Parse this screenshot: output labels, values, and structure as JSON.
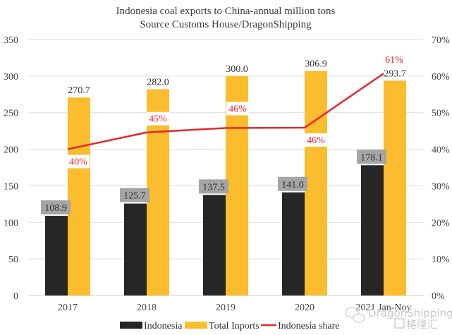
{
  "chart_data": {
    "type": "bar",
    "title": "Indonesia coal exports to China-annual million tons",
    "subtitle": "Source Customs House/DragonShipping",
    "categories": [
      "2017",
      "2018",
      "2019",
      "2020",
      "2021 Jan-Noy"
    ],
    "series": [
      {
        "name": "Indonesia",
        "type": "bar",
        "axis": "left",
        "color": "#262626",
        "values": [
          108.9,
          125.7,
          137.5,
          141.0,
          178.1
        ],
        "labels": [
          "108.9",
          "125.7",
          "137.5",
          "141.0",
          "178.1"
        ]
      },
      {
        "name": "Total Inports",
        "type": "bar",
        "axis": "left",
        "color": "#fbbc2d",
        "values": [
          270.7,
          282.0,
          300.0,
          306.9,
          293.7
        ],
        "labels": [
          "270.7",
          "282.0",
          "300.0",
          "306.9",
          "293.7"
        ]
      },
      {
        "name": "Indonesia share",
        "type": "line",
        "axis": "right",
        "color": "#e8262e",
        "values": [
          40,
          44.6,
          45.8,
          45.9,
          60.7
        ],
        "labels": [
          "40%",
          "45%",
          "46%",
          "46%",
          "61%"
        ]
      }
    ],
    "y_left": {
      "min": 0,
      "max": 350,
      "ticks": [
        "0",
        "50",
        "100",
        "150",
        "200",
        "250",
        "300",
        "350"
      ]
    },
    "y_right": {
      "min": 0,
      "max": 70,
      "ticks": [
        "0%",
        "10%",
        "20%",
        "30%",
        "40%",
        "50%",
        "60%",
        "70%"
      ]
    },
    "xlabel": "",
    "ylabel": "",
    "grid": true,
    "legend_position": "bottom"
  },
  "watermark": {
    "line1": "DragonShipping",
    "line2": "格隆汇"
  }
}
